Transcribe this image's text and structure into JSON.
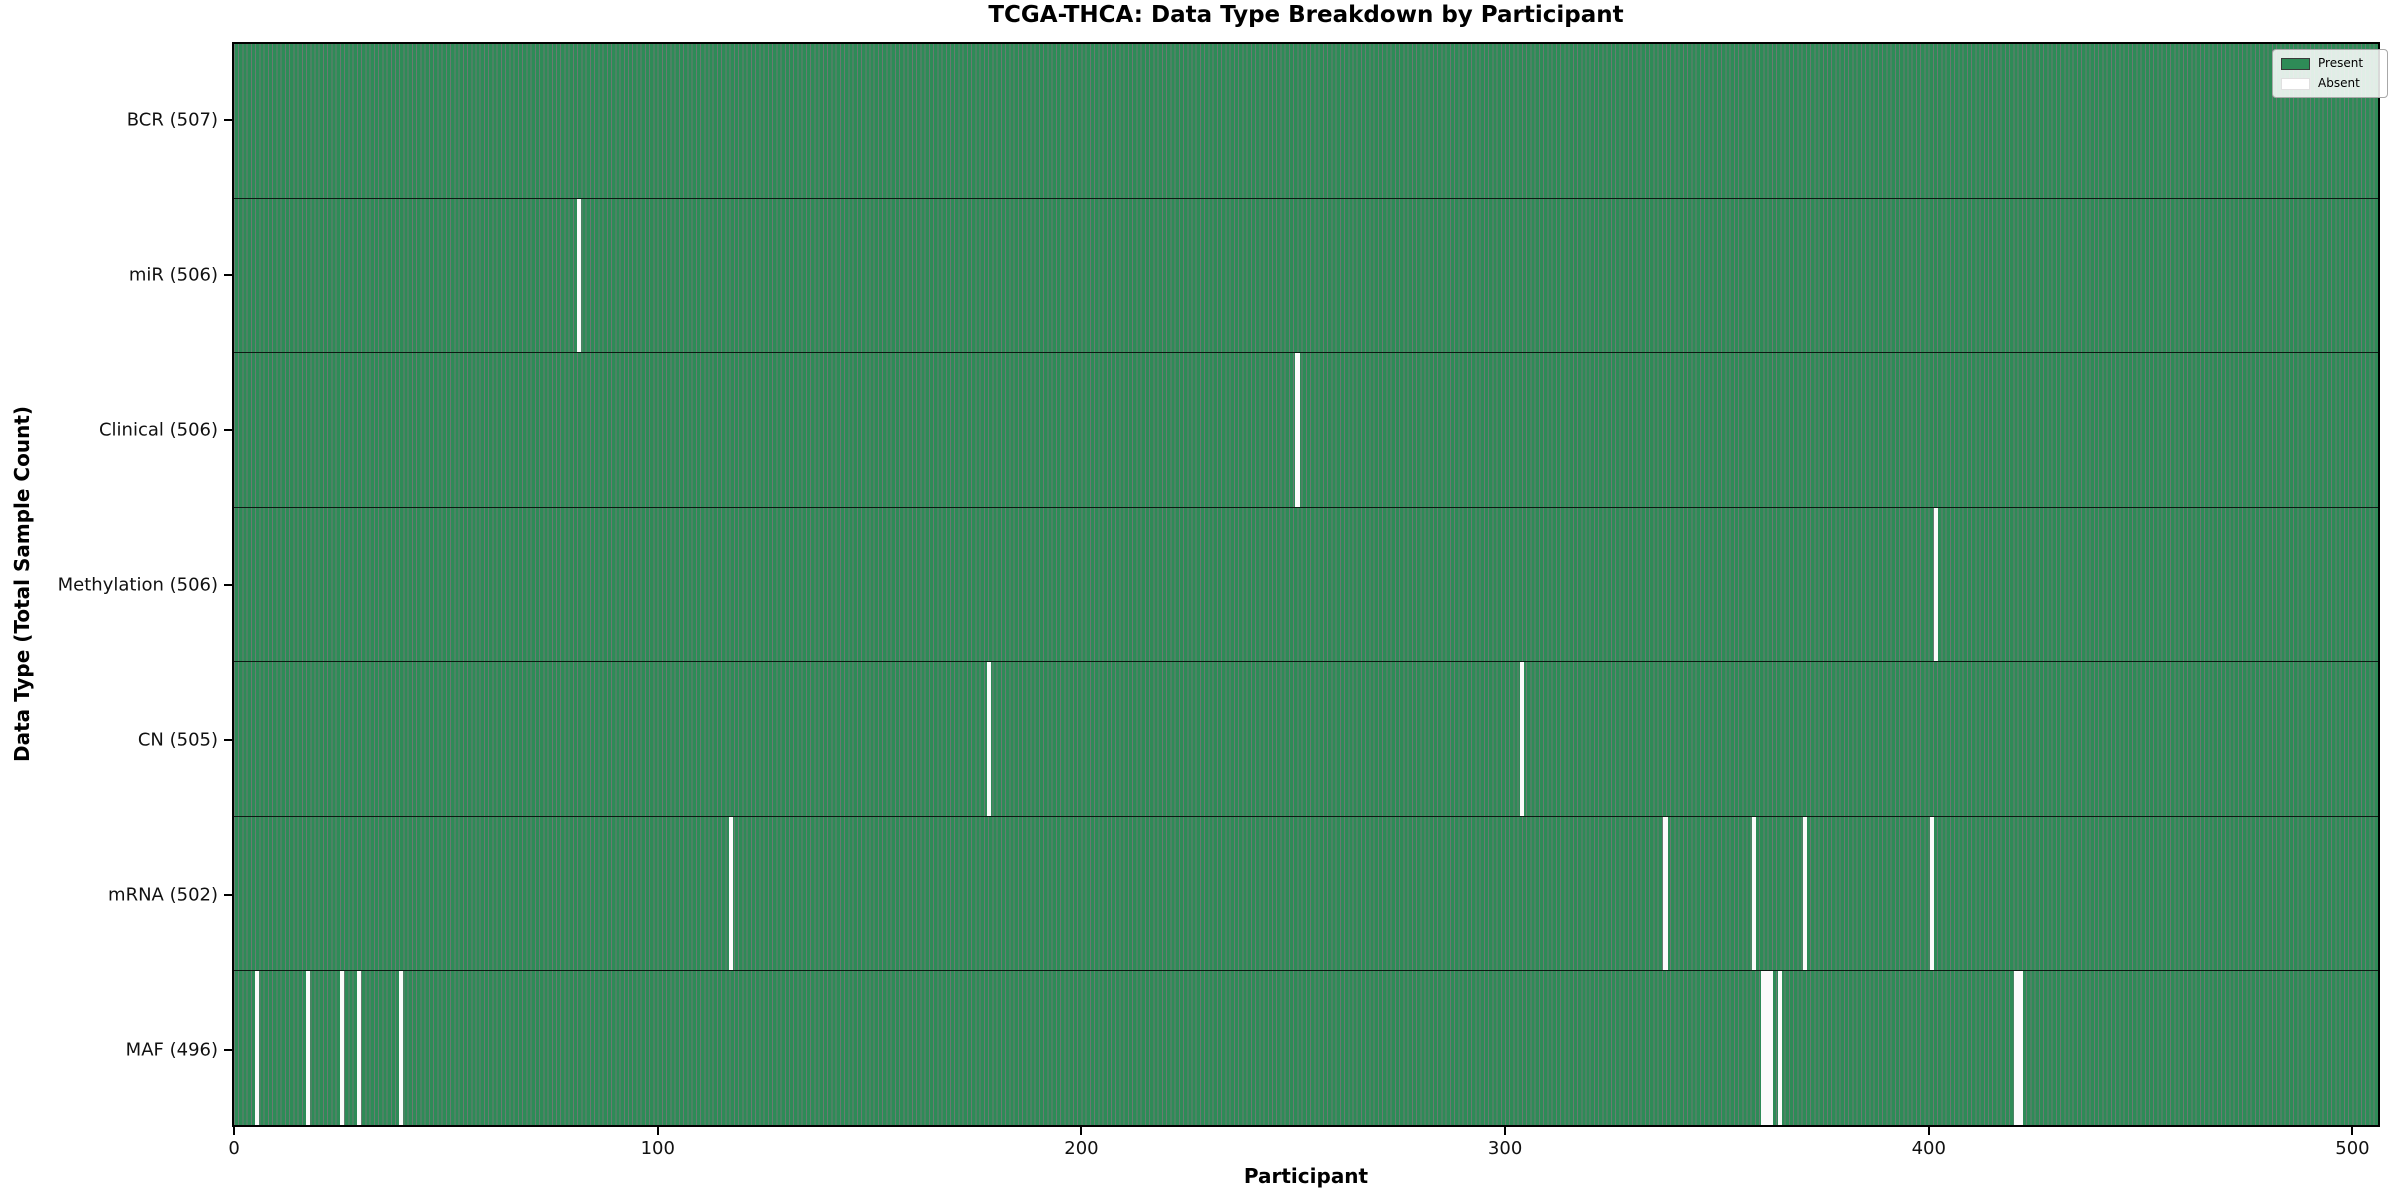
{
  "chart_data": {
    "type": "heatmap",
    "title": "TCGA-THCA: Data Type Breakdown by Participant",
    "xlabel": "Participant",
    "ylabel": "Data Type (Total Sample Count)",
    "x_ticks": [
      0,
      100,
      200,
      300,
      400,
      500
    ],
    "x_range": [
      -0.5,
      506.5
    ],
    "n_participants": 507,
    "grid": false,
    "legend_position": "upper-right",
    "colors": {
      "present": "#2e8b57",
      "absent": "#ffffff",
      "bar_edge": "#14301f"
    },
    "legend": [
      {
        "label": "Present",
        "color": "#2e8b57"
      },
      {
        "label": "Absent",
        "color": "#ffffff"
      }
    ],
    "rows": [
      {
        "data_type": "BCR",
        "label": "BCR (507)",
        "total": 507,
        "absent_participants": []
      },
      {
        "data_type": "miR",
        "label": "miR (506)",
        "total": 506,
        "absent_participants": [
          81
        ]
      },
      {
        "data_type": "Clinical",
        "label": "Clinical (506)",
        "total": 506,
        "absent_participants": [
          251
        ]
      },
      {
        "data_type": "Methylation",
        "label": "Methylation (506)",
        "total": 506,
        "absent_participants": [
          402
        ]
      },
      {
        "data_type": "CN",
        "label": "CN (505)",
        "total": 505,
        "absent_participants": [
          178,
          304
        ]
      },
      {
        "data_type": "mRNA",
        "label": "mRNA (502)",
        "total": 502,
        "absent_participants": [
          117,
          338,
          359,
          371,
          401
        ]
      },
      {
        "data_type": "MAF",
        "label": "MAF (496)",
        "total": 496,
        "absent_participants": [
          5,
          17,
          25,
          29,
          39,
          361,
          362,
          363,
          365,
          421,
          422
        ]
      }
    ]
  }
}
